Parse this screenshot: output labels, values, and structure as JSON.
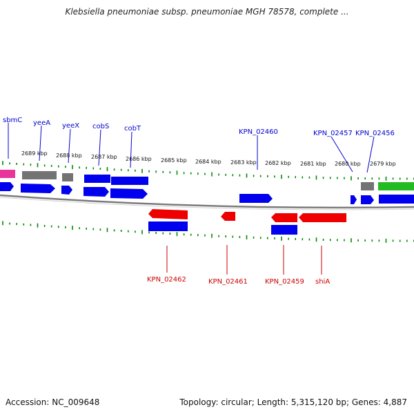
{
  "title": "Klebsiella pneumoniae subsp. pneumoniae MGH 78578, complete ...",
  "footer": {
    "accession": "Accession: NC_009648",
    "summary": "Topology: circular; Length: 5,315,120 bp; Genes: 4,887"
  },
  "colors": {
    "label_blue": "#0000cc",
    "label_red": "#cc0000",
    "tick_green": "#008800",
    "backbone": "#8a8a8a"
  },
  "scale_labels": [
    "2689 kbp",
    "2688 kbp",
    "2687 kbp",
    "2686 kbp",
    "2685 kbp",
    "2684 kbp",
    "2683 kbp",
    "2682 kbp",
    "2681 kbp",
    "2680 kbp",
    "2679 kbp"
  ],
  "gene_labels_top": [
    "sbmC",
    "yeeA",
    "yeeX",
    "cobS",
    "cobT",
    "KPN_02460",
    "KPN_02457",
    "KPN_02456"
  ],
  "gene_labels_bottom": [
    "KPN_02462",
    "KPN_02461",
    "KPN_02459",
    "shiA"
  ]
}
